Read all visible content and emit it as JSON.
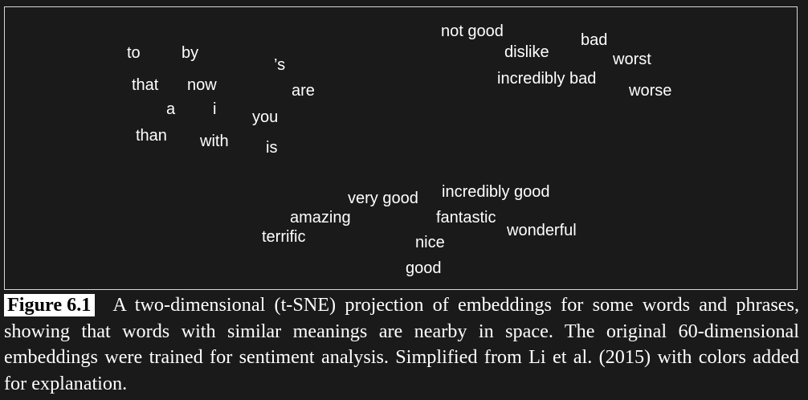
{
  "words": {
    "to": "to",
    "by": "by",
    "s": "’s",
    "that": "that",
    "now": "now",
    "are": "are",
    "a": "a",
    "i": "i",
    "you": "you",
    "than": "than",
    "with": "with",
    "is": "is",
    "not_good": "not good",
    "bad": "bad",
    "dislike": "dislike",
    "worst": "worst",
    "incredibly_bad": "incredibly bad",
    "worse": "worse",
    "very_good": "very good",
    "incredibly_good": "incredibly good",
    "amazing": "amazing",
    "fantastic": "fantastic",
    "wonderful": "wonderful",
    "terrific": "terrific",
    "nice": "nice",
    "good": "good"
  },
  "caption": {
    "label": "Figure 6.1",
    "text": "A two-dimensional (t-SNE) projection of embeddings for some words and phrases, showing that words with similar meanings are nearby in space. The original 60-dimensional embeddings were trained for sentiment analysis. Simplified from Li et al. (2015) with colors added for explanation."
  }
}
